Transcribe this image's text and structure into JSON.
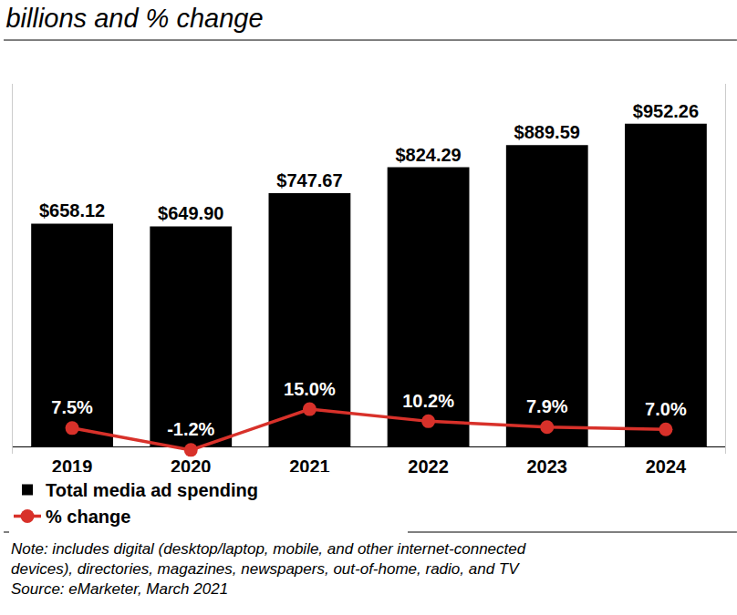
{
  "chart_data": {
    "type": "bar",
    "title": "billions and % change",
    "categories": [
      "2019",
      "2020",
      "2021",
      "2022",
      "2023",
      "2024"
    ],
    "series": [
      {
        "name": "Total media ad spending",
        "type": "bar",
        "color": "#000000",
        "values": [
          658.12,
          649.9,
          747.67,
          824.29,
          889.59,
          952.26
        ],
        "value_labels": [
          "$658.12",
          "$649.90",
          "$747.67",
          "$824.29",
          "$889.59",
          "$952.26"
        ]
      },
      {
        "name": "% change",
        "type": "line",
        "axis": "y2",
        "color": "#d8312a",
        "marker": "circle",
        "line_style": "solid",
        "values": [
          7.5,
          -1.2,
          15.0,
          10.2,
          7.9,
          7.0
        ],
        "value_labels": [
          "7.5%",
          "-1.2%",
          "15.0%",
          "10.2%",
          "7.9%",
          "7.0%"
        ]
      }
    ],
    "ylim": [
      -20,
      1070
    ],
    "y2lim": [
      -2.7,
      144.3
    ],
    "grid": false,
    "data_labels": true,
    "tick_labels": "x",
    "legend": "bottom left",
    "note": [
      "Note: includes digital (desktop/laptop, mobile, and other internet-connected",
      "devices), directories, magazines, newspapers, out-of-home, radio, and TV"
    ],
    "source": "Source: eMarketer, March 2021"
  }
}
